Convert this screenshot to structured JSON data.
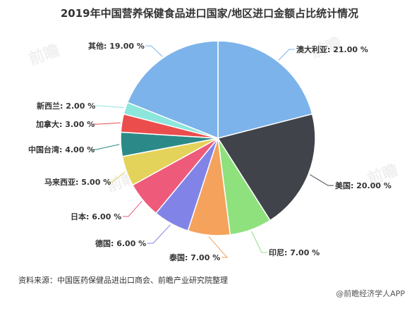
{
  "title": "2019年中国营养保健食品进口国家/地区进口金额占比统计情况",
  "source": "资料来源：中国医药保健品进出口商会、前瞻产业研究院整理",
  "brand": "@前瞻经济学人APP",
  "chart_data": {
    "type": "pie",
    "title": "2019年中国营养保健食品进口国家/地区进口金额占比统计情况",
    "slices": [
      {
        "label": "澳大利亚",
        "value": 21.0,
        "display": "澳大利亚: 21.00 %",
        "color": "#7cb3ea"
      },
      {
        "label": "美国",
        "value": 20.0,
        "display": "美国: 20.00 %",
        "color": "#404349"
      },
      {
        "label": "印尼",
        "value": 7.0,
        "display": "印尼: 7.00 %",
        "color": "#8ee17d"
      },
      {
        "label": "泰国",
        "value": 7.0,
        "display": "泰国: 7.00 %",
        "color": "#f4a25c"
      },
      {
        "label": "德国",
        "value": 6.0,
        "display": "德国: 6.00 %",
        "color": "#8184e6"
      },
      {
        "label": "日本",
        "value": 6.0,
        "display": "日本: 6.00 %",
        "color": "#ee5a79"
      },
      {
        "label": "马来西亚",
        "value": 5.0,
        "display": "马来西亚: 5.00 %",
        "color": "#e4d35a"
      },
      {
        "label": "中国台湾",
        "value": 4.0,
        "display": "中国台湾: 4.00 %",
        "color": "#2b8a87"
      },
      {
        "label": "加拿大",
        "value": 3.0,
        "display": "加拿大: 3.00 %",
        "color": "#eb4d4d"
      },
      {
        "label": "新西兰",
        "value": 2.0,
        "display": "新西兰: 2.00 %",
        "color": "#8de6db"
      },
      {
        "label": "其他",
        "value": 19.0,
        "display": "其他: 19.00 %",
        "color": "#7cb3ea"
      }
    ]
  }
}
